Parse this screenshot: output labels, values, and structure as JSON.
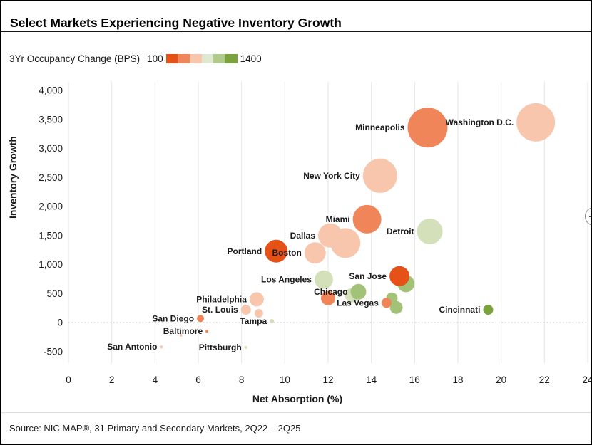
{
  "title": "Select Markets Experiencing Negative Inventory Growth",
  "legend": {
    "label": "3Yr Occupancy Change (BPS)",
    "min": "100",
    "max": "1400",
    "colors": [
      "#e65118",
      "#f0855a",
      "#f8c6ad",
      "#dfe9d1",
      "#b0ca8a",
      "#7aa33b"
    ]
  },
  "source": "Source: NIC MAP®, 31 Primary and Secondary Markets, 2Q22 – 2Q25",
  "chart_data": {
    "type": "scatter",
    "title": "Select Markets Experiencing Negative Inventory Growth",
    "xlabel": "Net Absorption (%)",
    "ylabel": "Inventory Growth",
    "xlim": [
      0,
      24
    ],
    "ylim": [
      -500,
      4000
    ],
    "x_ticks": [
      0,
      2,
      4,
      6,
      8,
      10,
      12,
      14,
      16,
      18,
      20,
      22,
      24
    ],
    "y_ticks": [
      -500,
      0,
      500,
      1000,
      1500,
      2000,
      2500,
      3000,
      3500,
      4000
    ],
    "grid": "vertical-only",
    "zero_line": "dotted",
    "legend_position": "top-left",
    "bubble_size_meaning": "market size",
    "color_meaning": "3Yr Occupancy Change (BPS), 100 (red-orange) to 1400 (green)",
    "palette": {
      "red": "#e65118",
      "orange": "#f0855a",
      "salmon": "#f8c6ad",
      "pale_green": "#d3e0ba",
      "green": "#a2c377",
      "dark_green": "#7aa33b"
    },
    "points": [
      {
        "market": "Washington D.C.",
        "x": 21.6,
        "y": 3450,
        "r": 27,
        "color": "salmon"
      },
      {
        "market": "Minneapolis",
        "x": 16.6,
        "y": 3360,
        "r": 28,
        "color": "orange"
      },
      {
        "market": "New York City",
        "x": 14.4,
        "y": 2530,
        "r": 24,
        "color": "salmon"
      },
      {
        "market": "Miami",
        "x": 13.8,
        "y": 1780,
        "r": 20,
        "color": "orange"
      },
      {
        "market": "Detroit",
        "x": 16.7,
        "y": 1570,
        "r": 18,
        "color": "pale_green"
      },
      {
        "market": "Dallas",
        "x": 12.1,
        "y": 1500,
        "r": 17,
        "color": "salmon"
      },
      {
        "market": "",
        "x": 12.8,
        "y": 1370,
        "r": 21,
        "color": "salmon"
      },
      {
        "market": "Boston",
        "x": 11.4,
        "y": 1200,
        "r": 15,
        "color": "salmon"
      },
      {
        "market": "Portland",
        "x": 9.6,
        "y": 1230,
        "r": 16,
        "color": "red"
      },
      {
        "market": "Los Angeles",
        "x": 11.8,
        "y": 740,
        "r": 13,
        "color": "pale_green"
      },
      {
        "market": "",
        "x": 15.6,
        "y": 670,
        "r": 12,
        "color": "green"
      },
      {
        "market": "San Jose",
        "x": 15.3,
        "y": 800,
        "r": 14,
        "color": "red"
      },
      {
        "market": "",
        "x": 13.1,
        "y": 470,
        "r": 10,
        "color": "pale_green"
      },
      {
        "market": "Chicago",
        "x": 13.4,
        "y": 530,
        "r": 11,
        "color": "green"
      },
      {
        "market": "",
        "x": 12.0,
        "y": 420,
        "r": 10,
        "color": "orange"
      },
      {
        "market": "",
        "x": 14.95,
        "y": 420,
        "r": 8,
        "color": "green"
      },
      {
        "market": "",
        "x": 15.15,
        "y": 260,
        "r": 9,
        "color": "green"
      },
      {
        "market": "Las Vegas",
        "x": 14.7,
        "y": 340,
        "r": 7,
        "color": "orange"
      },
      {
        "market": "Cincinnati",
        "x": 19.4,
        "y": 220,
        "r": 7,
        "color": "dark_green"
      },
      {
        "market": "Philadelphia",
        "x": 8.7,
        "y": 400,
        "r": 10,
        "color": "salmon"
      },
      {
        "market": "St. Louis",
        "x": 8.2,
        "y": 220,
        "r": 7,
        "color": "salmon"
      },
      {
        "market": "",
        "x": 8.8,
        "y": 160,
        "r": 6,
        "color": "salmon"
      },
      {
        "market": "Tampa",
        "x": 9.4,
        "y": 25,
        "r": 3,
        "color": "pale_green"
      },
      {
        "market": "San Diego",
        "x": 6.1,
        "y": 70,
        "r": 5,
        "color": "orange"
      },
      {
        "market": "Baltimore",
        "x": 6.4,
        "y": -150,
        "r": 2,
        "color": "orange"
      },
      {
        "market": "",
        "x": 5.2,
        "y": -220,
        "r": 2,
        "color": "salmon"
      },
      {
        "market": "San Antonio",
        "x": 4.3,
        "y": -420,
        "r": 2,
        "color": "salmon"
      },
      {
        "market": "Pittsburgh",
        "x": 8.2,
        "y": -430,
        "r": 2,
        "color": "pale_green"
      }
    ]
  }
}
